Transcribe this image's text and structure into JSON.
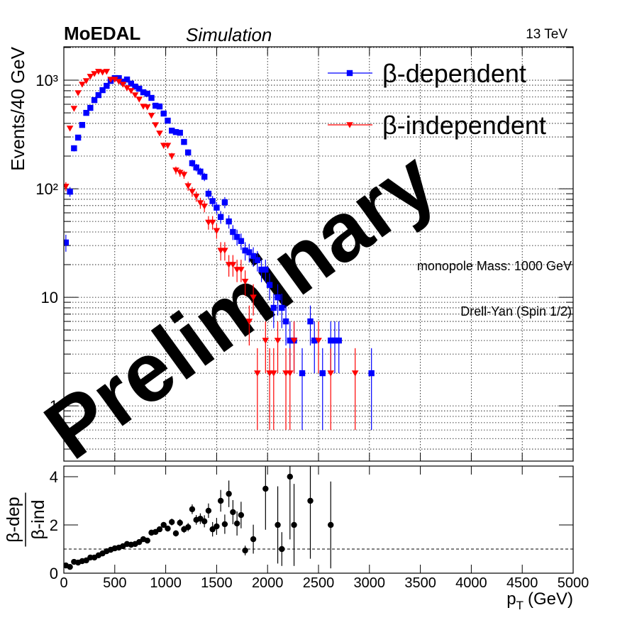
{
  "header": {
    "experiment": "MoEDAL",
    "status": "Simulation",
    "energy": "13 TeV"
  },
  "watermark": "Preliminary",
  "chart_data": [
    {
      "type": "scatter",
      "log_y": true,
      "grid": true,
      "legend": "top-right",
      "ylabel": "Events/40 GeV",
      "annotations": [
        "monopole Mass: 1000 GeV",
        "Drell-Yan (Spin 1/2)"
      ],
      "xlim": [
        0,
        5000
      ],
      "xticks": [
        0,
        500,
        1000,
        1500,
        2000,
        2500,
        3000,
        3500,
        4000,
        4500,
        5000
      ],
      "ylim": [
        0.31,
        2030
      ],
      "yticks": [
        1,
        10,
        {
          "value": 100,
          "label": "10²"
        },
        {
          "value": 1000,
          "label": "10³"
        }
      ],
      "yminorticks": [
        0.4,
        0.5,
        0.6,
        0.7,
        0.8,
        0.9,
        2,
        3,
        4,
        5,
        6,
        7,
        8,
        9,
        20,
        30,
        40,
        50,
        60,
        70,
        80,
        90,
        200,
        300,
        400,
        500,
        600,
        700,
        800,
        900,
        2000
      ],
      "series": [
        {
          "name": "β-dependent",
          "color": "#0000ff",
          "marker": "square",
          "x": [
            20,
            60,
            100,
            140,
            180,
            220,
            260,
            300,
            340,
            380,
            420,
            460,
            500,
            540,
            580,
            620,
            660,
            700,
            740,
            780,
            820,
            860,
            900,
            940,
            980,
            1020,
            1060,
            1100,
            1140,
            1180,
            1220,
            1260,
            1300,
            1340,
            1380,
            1420,
            1460,
            1500,
            1540,
            1580,
            1620,
            1660,
            1700,
            1740,
            1780,
            1820,
            1860,
            1900,
            1940,
            1980,
            2020,
            2060,
            2100,
            2140,
            2180,
            2220,
            2260,
            2340,
            2420,
            2460,
            2540,
            2620,
            2660,
            2700,
            3020
          ],
          "values": [
            32,
            94,
            236,
            296,
            387,
            500,
            556,
            656,
            729,
            810,
            887,
            985,
            1045,
            1045,
            970,
            1015,
            930,
            873,
            835,
            774,
            751,
            687,
            582,
            573,
            493,
            424,
            343,
            333,
            328,
            270,
            216,
            172,
            157,
            144,
            129,
            90,
            77,
            67,
            55,
            75,
            50,
            40,
            36,
            33,
            27,
            26,
            24,
            22,
            18,
            18,
            13,
            8,
            10,
            8,
            6,
            4,
            4,
            2,
            6,
            4,
            2,
            4,
            4,
            4,
            2
          ],
          "errors": [
            5.7,
            9.7,
            15.4,
            17.2,
            19.7,
            22.4,
            23.6,
            25.6,
            27,
            28.5,
            29.8,
            31.4,
            32.3,
            32.3,
            31.1,
            31.9,
            30.5,
            29.5,
            28.9,
            27.8,
            27.4,
            26.2,
            24.1,
            23.9,
            22.2,
            20.6,
            18.5,
            18.2,
            18.1,
            16.4,
            14.7,
            13.1,
            12.5,
            12,
            11.4,
            9.5,
            8.8,
            8.2,
            7.4,
            8.7,
            7.1,
            6.3,
            6,
            5.7,
            5.2,
            5.1,
            4.9,
            4.7,
            4.2,
            4.2,
            3.6,
            2.8,
            3.2,
            2.8,
            2.4,
            2,
            2,
            1.4,
            2.4,
            2,
            1.4,
            2,
            2,
            2,
            1.4
          ]
        },
        {
          "name": "β-independent",
          "color": "#ff0000",
          "marker": "triangle-down",
          "x": [
            20,
            60,
            100,
            140,
            180,
            220,
            260,
            300,
            340,
            380,
            420,
            460,
            500,
            540,
            580,
            620,
            660,
            700,
            740,
            780,
            820,
            860,
            900,
            940,
            980,
            1020,
            1060,
            1100,
            1140,
            1180,
            1220,
            1260,
            1300,
            1340,
            1380,
            1420,
            1460,
            1500,
            1540,
            1580,
            1620,
            1660,
            1700,
            1740,
            1780,
            1820,
            1860,
            1900,
            1980,
            2020,
            2060,
            2100,
            2180,
            2220,
            2260,
            2500,
            2620,
            2860
          ],
          "values": [
            105,
            360,
            548,
            763,
            914,
            985,
            1080,
            1145,
            1200,
            1180,
            1200,
            1015,
            1015,
            970,
            914,
            847,
            798,
            729,
            666,
            573,
            565,
            472,
            387,
            324,
            250,
            250,
            200,
            148,
            141,
            135,
            106,
            94,
            85,
            74,
            69,
            49,
            49,
            41,
            27,
            27,
            20,
            20,
            18,
            18,
            14,
            6,
            10,
            2,
            4,
            2,
            2,
            4,
            2,
            2,
            4,
            4,
            2,
            2
          ],
          "errors": [
            10.2,
            19,
            23.4,
            27.6,
            30.2,
            31.4,
            32.9,
            33.8,
            34.6,
            34.4,
            34.6,
            31.9,
            31.9,
            31.1,
            30.2,
            29.1,
            28.2,
            27,
            25.8,
            23.9,
            23.8,
            21.7,
            19.7,
            18,
            15.8,
            15.8,
            14.1,
            12.2,
            11.9,
            11.6,
            10.3,
            9.7,
            9.2,
            8.6,
            8.3,
            7,
            7,
            6.4,
            5.2,
            5.2,
            4.5,
            4.5,
            4.2,
            4.2,
            3.7,
            2.4,
            3.2,
            1.4,
            2,
            1.4,
            1.4,
            2,
            1.4,
            1.4,
            2,
            2,
            1.4,
            1.4
          ]
        }
      ]
    },
    {
      "type": "scatter",
      "color": "#000000",
      "reference_line": 1,
      "xlabel": {
        "text": "p",
        "subscript": "T",
        "suffix": "(GeV)"
      },
      "ylabel": {
        "numerator": "β-dep",
        "denominator": "β-ind"
      },
      "xlim": [
        0,
        5000
      ],
      "xticks": [
        0,
        500,
        1000,
        1500,
        2000,
        2500,
        3000,
        3500,
        4000,
        4500,
        5000
      ],
      "ylim": [
        0,
        4.44
      ],
      "yticks": [
        0,
        2,
        4
      ],
      "x": [
        20,
        60,
        100,
        140,
        180,
        220,
        260,
        300,
        340,
        380,
        420,
        460,
        500,
        540,
        580,
        620,
        660,
        700,
        740,
        780,
        820,
        860,
        900,
        940,
        980,
        1020,
        1060,
        1100,
        1140,
        1180,
        1220,
        1260,
        1300,
        1340,
        1380,
        1420,
        1460,
        1500,
        1540,
        1580,
        1620,
        1660,
        1700,
        1740,
        1780,
        1860,
        1980,
        2100,
        2140,
        2220,
        2260,
        2420,
        2620
      ],
      "values": [
        0.32,
        0.26,
        0.47,
        0.44,
        0.5,
        0.53,
        0.65,
        0.65,
        0.74,
        0.82,
        0.91,
        0.97,
        1.03,
        1.06,
        1.12,
        1.21,
        1.18,
        1.21,
        1.29,
        1.41,
        1.35,
        1.68,
        1.71,
        1.82,
        2.0,
        1.85,
        2.12,
        1.65,
        2.09,
        1.82,
        1.91,
        2.65,
        2.21,
        2.26,
        2.15,
        2.59,
        1.82,
        1.94,
        3.0,
        2.03,
        3.29,
        2.53,
        2.06,
        2.41,
        0.94,
        1.41,
        3.5,
        2.0,
        1.0,
        4.0,
        2.0,
        3.0,
        2.0
      ],
      "errors": [
        0.06,
        0.04,
        0.04,
        0.03,
        0.03,
        0.03,
        0.03,
        0.03,
        0.04,
        0.04,
        0.04,
        0.04,
        0.05,
        0.05,
        0.05,
        0.05,
        0.06,
        0.06,
        0.06,
        0.07,
        0.07,
        0.08,
        0.09,
        0.1,
        0.12,
        0.12,
        0.14,
        0.13,
        0.15,
        0.15,
        0.17,
        0.2,
        0.2,
        0.22,
        0.25,
        0.3,
        0.3,
        0.35,
        0.45,
        0.4,
        0.55,
        0.5,
        0.5,
        0.55,
        0.2,
        0.6,
        1.7,
        1.6,
        0.7,
        2.6,
        1.7,
        2.4,
        1.8
      ]
    }
  ]
}
